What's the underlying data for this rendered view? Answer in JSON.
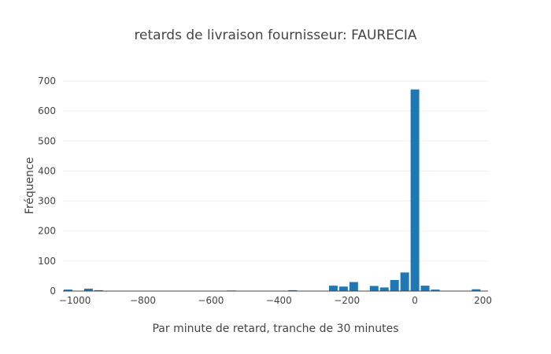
{
  "chart_data": {
    "type": "bar",
    "title": "retards de livraison fournisseur: FAURECIA",
    "xlabel": "Par minute de retard, tranche de 30 minutes",
    "ylabel": "Fréquence",
    "xlim": [
      -1035,
      215
    ],
    "ylim": [
      0,
      700
    ],
    "bin_width": 30,
    "xticks": [
      -1000,
      -800,
      -600,
      -400,
      -200,
      0,
      200
    ],
    "xtick_labels": [
      "−1000",
      "−800",
      "−600",
      "−400",
      "−200",
      "0",
      "200"
    ],
    "yticks": [
      0,
      100,
      200,
      300,
      400,
      500,
      600,
      700
    ],
    "ytick_labels": [
      "0",
      "100",
      "200",
      "300",
      "400",
      "500",
      "600",
      "700"
    ],
    "grid": true,
    "bar_color": "#1f77b4",
    "bins": [
      {
        "x": -1020,
        "y": 5
      },
      {
        "x": -960,
        "y": 8
      },
      {
        "x": -930,
        "y": 3
      },
      {
        "x": -540,
        "y": 2
      },
      {
        "x": -360,
        "y": 3
      },
      {
        "x": -240,
        "y": 18
      },
      {
        "x": -210,
        "y": 15
      },
      {
        "x": -180,
        "y": 30
      },
      {
        "x": -120,
        "y": 17
      },
      {
        "x": -90,
        "y": 12
      },
      {
        "x": -60,
        "y": 37
      },
      {
        "x": -30,
        "y": 62
      },
      {
        "x": 0,
        "y": 672
      },
      {
        "x": 30,
        "y": 18
      },
      {
        "x": 60,
        "y": 5
      },
      {
        "x": 180,
        "y": 6
      }
    ]
  }
}
